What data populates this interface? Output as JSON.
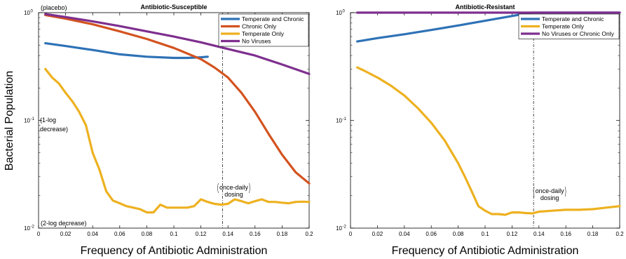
{
  "ylabel": "Bacterial Population",
  "chart_data": [
    {
      "type": "line",
      "title": "Antibiotic-Susceptible",
      "xlabel": "Frequency of Antibiotic Administration",
      "ylabel": "Bacterial Population",
      "xlim": [
        0,
        0.2
      ],
      "ylim": [
        0.01,
        1
      ],
      "yscale": "log",
      "x_ticks": [
        "0",
        "0.02",
        "0.04",
        "0.06",
        "0.08",
        "0.1",
        "0.12",
        "0.14",
        "0.16",
        "0.18",
        "0.2"
      ],
      "y_ticks": [
        {
          "base": "10",
          "exp": "-2",
          "value": 0.01
        },
        {
          "base": "10",
          "exp": "-1",
          "value": 0.1
        },
        {
          "base": "10",
          "exp": "0",
          "value": 1
        }
      ],
      "legend_position": "top-right",
      "annotations": {
        "top": "(placebo)",
        "one_log_line1": "(1-log",
        "one_log_line2": "decrease)",
        "two_log": "(2-log decrease)",
        "dosing_line1": "once-daily",
        "dosing_line2": "dosing"
      },
      "dosing_x": 0.136,
      "series": [
        {
          "name": "Temperate and Chronic",
          "color": "#2E72B6",
          "x": [
            0.005,
            0.02,
            0.04,
            0.06,
            0.08,
            0.1,
            0.11,
            0.12,
            0.125
          ],
          "y": [
            0.52,
            0.49,
            0.45,
            0.41,
            0.39,
            0.38,
            0.38,
            0.385,
            0.39
          ]
        },
        {
          "name": "Chronic Only",
          "color": "#D35320",
          "x": [
            0.005,
            0.02,
            0.04,
            0.06,
            0.08,
            0.1,
            0.12,
            0.13,
            0.14,
            0.15,
            0.16,
            0.17,
            0.18,
            0.19,
            0.2
          ],
          "y": [
            0.95,
            0.88,
            0.78,
            0.67,
            0.57,
            0.47,
            0.37,
            0.31,
            0.25,
            0.18,
            0.12,
            0.075,
            0.048,
            0.033,
            0.026
          ]
        },
        {
          "name": "Temperate Only",
          "color": "#EDB120",
          "x": [
            0.005,
            0.01,
            0.015,
            0.02,
            0.025,
            0.03,
            0.035,
            0.04,
            0.045,
            0.05,
            0.055,
            0.06,
            0.065,
            0.07,
            0.075,
            0.08,
            0.085,
            0.09,
            0.095,
            0.1,
            0.105,
            0.11,
            0.115,
            0.12,
            0.125,
            0.13,
            0.135,
            0.14,
            0.145,
            0.15,
            0.155,
            0.16,
            0.165,
            0.17,
            0.175,
            0.18,
            0.185,
            0.19,
            0.195,
            0.2
          ],
          "y": [
            0.3,
            0.25,
            0.22,
            0.18,
            0.15,
            0.12,
            0.09,
            0.05,
            0.035,
            0.022,
            0.018,
            0.017,
            0.016,
            0.0155,
            0.015,
            0.014,
            0.014,
            0.0165,
            0.0155,
            0.0155,
            0.0155,
            0.0155,
            0.016,
            0.0185,
            0.0175,
            0.0168,
            0.0165,
            0.0168,
            0.0185,
            0.0178,
            0.017,
            0.0178,
            0.0185,
            0.0175,
            0.0175,
            0.0172,
            0.017,
            0.0175,
            0.0176,
            0.0175
          ]
        },
        {
          "name": "No Viruses",
          "color": "#7E2F8E",
          "x": [
            0.005,
            0.02,
            0.04,
            0.06,
            0.08,
            0.1,
            0.12,
            0.14,
            0.16,
            0.18,
            0.2
          ],
          "y": [
            0.97,
            0.91,
            0.83,
            0.75,
            0.67,
            0.6,
            0.53,
            0.46,
            0.4,
            0.33,
            0.27
          ]
        }
      ]
    },
    {
      "type": "line",
      "title": "Antibiotic-Resistant",
      "xlabel": "Frequency of Antibiotic Administration",
      "xlim": [
        0,
        0.2
      ],
      "ylim": [
        0.01,
        1
      ],
      "yscale": "log",
      "x_ticks": [
        "0",
        "0.02",
        "0.04",
        "0.06",
        "0.08",
        "0.1",
        "0.12",
        "0.14",
        "0.16",
        "0.18",
        "0.2"
      ],
      "y_ticks": [
        {
          "base": "10",
          "exp": "-2",
          "value": 0.01
        },
        {
          "base": "10",
          "exp": "-1",
          "value": 0.1
        },
        {
          "base": "10",
          "exp": "0",
          "value": 1
        }
      ],
      "legend_position": "top-right",
      "annotations": {
        "dosing_line1": "once-daily",
        "dosing_line2": "dosing"
      },
      "dosing_x": 0.136,
      "series": [
        {
          "name": "Temperate and Chronic",
          "color": "#2E72B6",
          "x": [
            0.005,
            0.02,
            0.04,
            0.06,
            0.08,
            0.1,
            0.12,
            0.13,
            0.135,
            0.14,
            0.16,
            0.18,
            0.2
          ],
          "y": [
            0.54,
            0.58,
            0.63,
            0.69,
            0.76,
            0.84,
            0.93,
            0.98,
            1.0,
            1.0,
            1.0,
            1.0,
            1.0
          ]
        },
        {
          "name": "Temperate Only",
          "color": "#EDB120",
          "x": [
            0.005,
            0.01,
            0.02,
            0.03,
            0.04,
            0.05,
            0.06,
            0.07,
            0.08,
            0.085,
            0.09,
            0.095,
            0.1,
            0.105,
            0.11,
            0.115,
            0.12,
            0.125,
            0.13,
            0.135,
            0.14,
            0.15,
            0.16,
            0.17,
            0.18,
            0.19,
            0.2
          ],
          "y": [
            0.31,
            0.29,
            0.25,
            0.21,
            0.17,
            0.13,
            0.095,
            0.065,
            0.04,
            0.03,
            0.022,
            0.016,
            0.0145,
            0.0135,
            0.0135,
            0.0133,
            0.014,
            0.014,
            0.0138,
            0.0137,
            0.0142,
            0.0145,
            0.0148,
            0.0148,
            0.015,
            0.0155,
            0.016
          ]
        },
        {
          "name": "No Viruses or Chronic Only",
          "color": "#7E2F8E",
          "x": [
            0.005,
            0.2
          ],
          "y": [
            1.0,
            1.0
          ]
        }
      ]
    }
  ]
}
